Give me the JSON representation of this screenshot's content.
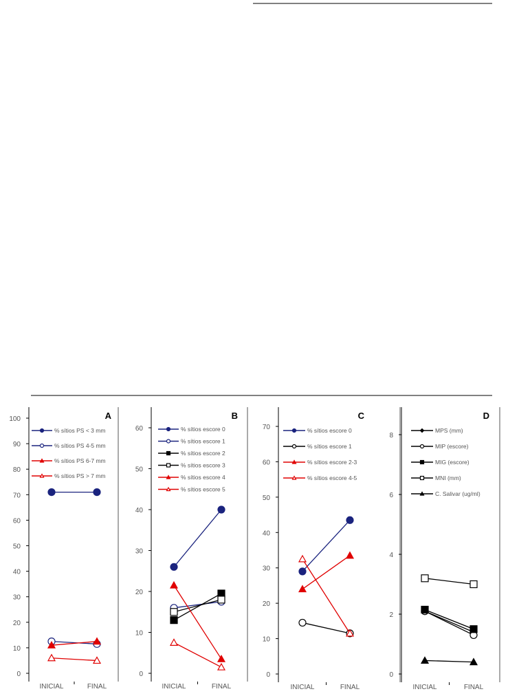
{
  "chart_data": [
    {
      "type": "line",
      "panel_label": "A",
      "categories": [
        "INICIAL",
        "FINAL"
      ],
      "ylim": [
        0,
        100
      ],
      "yticks": [
        0,
        10,
        20,
        30,
        40,
        50,
        60,
        70,
        80,
        90,
        100
      ],
      "legend_position": "top",
      "series": [
        {
          "name": "% sítios PS < 3 mm",
          "values": [
            71,
            71
          ],
          "color": "#1a237e",
          "marker": "circle-filled"
        },
        {
          "name": "% sítios PS 4-5 mm",
          "values": [
            12.5,
            11.5
          ],
          "color": "#1a237e",
          "marker": "circle-open"
        },
        {
          "name": "% sítios PS 6-7 mm",
          "values": [
            11,
            12.5
          ],
          "color": "#e00000",
          "marker": "triangle-filled"
        },
        {
          "name": "% sítios PS > 7 mm",
          "values": [
            6,
            5
          ],
          "color": "#e00000",
          "marker": "triangle-open"
        }
      ]
    },
    {
      "type": "line",
      "panel_label": "B",
      "categories": [
        "INICIAL",
        "FINAL"
      ],
      "ylim": [
        0,
        60
      ],
      "yticks": [
        0,
        10,
        20,
        30,
        40,
        50,
        60
      ],
      "legend_position": "top",
      "series": [
        {
          "name": "% sítios escore 0",
          "values": [
            26,
            40
          ],
          "color": "#1a237e",
          "marker": "circle-filled"
        },
        {
          "name": "% sítios escore 1",
          "values": [
            16,
            17.5
          ],
          "color": "#1a237e",
          "marker": "circle-open"
        },
        {
          "name": "% sítios escore 2",
          "values": [
            13,
            19.5
          ],
          "color": "#000000",
          "marker": "square-filled"
        },
        {
          "name": "% sítios escore 3",
          "values": [
            15,
            18
          ],
          "color": "#000000",
          "marker": "square-open"
        },
        {
          "name": "% sítios escore 4",
          "values": [
            21.5,
            3.5
          ],
          "color": "#e00000",
          "marker": "triangle-filled"
        },
        {
          "name": "% sítios escore 5",
          "values": [
            7.5,
            1.5
          ],
          "color": "#e00000",
          "marker": "triangle-open"
        }
      ]
    },
    {
      "type": "line",
      "panel_label": "C",
      "categories": [
        "INICIAL",
        "FINAL"
      ],
      "ylim": [
        0,
        70
      ],
      "yticks": [
        0,
        10,
        20,
        30,
        40,
        50,
        60,
        70
      ],
      "legend_position": "top",
      "series": [
        {
          "name": "% sítios escore 0",
          "values": [
            29,
            43.5
          ],
          "color": "#1a237e",
          "marker": "circle-filled"
        },
        {
          "name": "% sítios escore 1",
          "values": [
            14.5,
            11.5
          ],
          "color": "#000000",
          "marker": "circle-open"
        },
        {
          "name": "% sítios escore 2-3",
          "values": [
            24,
            33.5
          ],
          "color": "#e00000",
          "marker": "triangle-filled"
        },
        {
          "name": "% sítios escore 4-5",
          "values": [
            32.5,
            11.5
          ],
          "color": "#e00000",
          "marker": "triangle-open"
        }
      ]
    },
    {
      "type": "line",
      "panel_label": "D",
      "categories": [
        "INICIAL",
        "FINAL"
      ],
      "ylim": [
        0,
        8
      ],
      "yticks": [
        0,
        2,
        4,
        6,
        8
      ],
      "legend_position": "top",
      "series": [
        {
          "name": "MPS (mm)",
          "values": [
            2.1,
            1.4
          ],
          "color": "#000000",
          "marker": "diamond-filled"
        },
        {
          "name": "MIP (escore)",
          "values": [
            2.1,
            1.3
          ],
          "color": "#000000",
          "marker": "circle-open"
        },
        {
          "name": "MIG (escore)",
          "values": [
            2.15,
            1.5
          ],
          "color": "#000000",
          "marker": "square-filled"
        },
        {
          "name": "MNI (mm)",
          "values": [
            3.2,
            3.0
          ],
          "color": "#000000",
          "marker": "square-open"
        },
        {
          "name": "C. Salivar (ug/ml)",
          "values": [
            0.45,
            0.4
          ],
          "color": "#000000",
          "marker": "triangle-filled"
        }
      ]
    }
  ]
}
